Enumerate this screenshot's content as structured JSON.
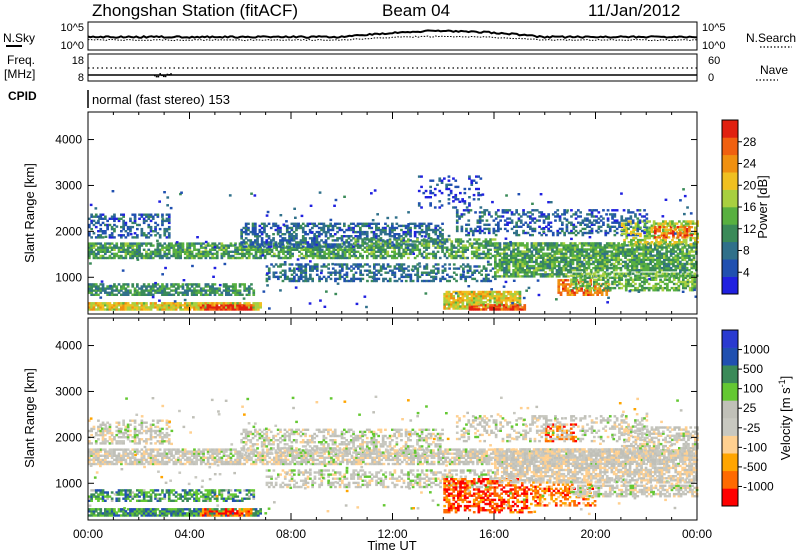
{
  "header": {
    "station": "Zhongshan Station (fitACF)",
    "beam": "Beam 04",
    "date": "11/Jan/2012"
  },
  "top_panels": {
    "nsky_label": "N.Sky",
    "nsky_ticks": [
      "10^5",
      "10^0"
    ],
    "nsearch_label": "N.Search",
    "nsearch_ticks": [
      "10^5",
      "10^0"
    ],
    "freq_label": "Freq.",
    "freq_unit": "[MHz]",
    "freq_ticks": [
      "18",
      "8"
    ],
    "nave_label": "Nave",
    "nave_ticks": [
      "60",
      "0"
    ],
    "cpid_label": "CPID",
    "cpid_text": "normal (fast stereo) 153"
  },
  "colors": {
    "power_scale": [
      "#2020e0",
      "#2050b0",
      "#30708a",
      "#3a8a58",
      "#58b040",
      "#a8d040",
      "#f0c020",
      "#f09010",
      "#f06010",
      "#e02010"
    ],
    "velocity_scale": [
      "#ff0000",
      "#ff6a00",
      "#ffa500",
      "#ffd090",
      "#c8c8c0",
      "#c0c0b8",
      "#64c832",
      "#3a8a58",
      "#2050b0",
      "#2a3ad0"
    ]
  },
  "chart_data": [
    {
      "type": "heatmap",
      "name": "power",
      "ylabel": "Slant Range [km]",
      "yticks": [
        "4000",
        "3000",
        "2000",
        "1000"
      ],
      "ylim": [
        200,
        4600
      ],
      "colorbar_label": "Power [dB]",
      "colorbar_ticks": [
        "28",
        "24",
        "20",
        "16",
        "12",
        "8",
        "4"
      ],
      "colorbar_range": [
        0,
        32
      ],
      "xlim_hours": [
        0,
        24
      ],
      "bands": [
        {
          "t": [
            0.0,
            6.8
          ],
          "r": [
            280,
            420
          ],
          "level": 0.62,
          "density": 0.9
        },
        {
          "t": [
            4.4,
            6.4
          ],
          "r": [
            280,
            400
          ],
          "level": 0.92,
          "density": 0.85
        },
        {
          "t": [
            0.0,
            6.5
          ],
          "r": [
            600,
            850
          ],
          "level": 0.35,
          "density": 0.7
        },
        {
          "t": [
            0.0,
            10.5
          ],
          "r": [
            1400,
            1750
          ],
          "level": 0.38,
          "density": 0.75
        },
        {
          "t": [
            0.0,
            3.2
          ],
          "r": [
            1850,
            2350
          ],
          "level": 0.2,
          "density": 0.45
        },
        {
          "t": [
            6.0,
            14.0
          ],
          "r": [
            1650,
            2150
          ],
          "level": 0.22,
          "density": 0.55
        },
        {
          "t": [
            10.5,
            16.0
          ],
          "r": [
            1400,
            1850
          ],
          "level": 0.4,
          "density": 0.6
        },
        {
          "t": [
            7.0,
            16.0
          ],
          "r": [
            900,
            1300
          ],
          "level": 0.25,
          "density": 0.45
        },
        {
          "t": [
            16.0,
            24.0
          ],
          "r": [
            1000,
            1750
          ],
          "level": 0.4,
          "density": 0.8
        },
        {
          "t": [
            14.0,
            17.0
          ],
          "r": [
            300,
            700
          ],
          "level": 0.62,
          "density": 0.85
        },
        {
          "t": [
            15.0,
            17.2
          ],
          "r": [
            280,
            400
          ],
          "level": 0.9,
          "density": 0.85
        },
        {
          "t": [
            18.5,
            20.5
          ],
          "r": [
            600,
            950
          ],
          "level": 0.82,
          "density": 0.7
        },
        {
          "t": [
            19.0,
            24.0
          ],
          "r": [
            700,
            1100
          ],
          "level": 0.45,
          "density": 0.6
        },
        {
          "t": [
            21.0,
            24.0
          ],
          "r": [
            1700,
            2200
          ],
          "level": 0.55,
          "density": 0.65
        },
        {
          "t": [
            22.3,
            23.8
          ],
          "r": [
            1850,
            2100
          ],
          "level": 0.82,
          "density": 0.6
        },
        {
          "t": [
            14.5,
            22.0
          ],
          "r": [
            1900,
            2450
          ],
          "level": 0.2,
          "density": 0.35
        },
        {
          "t": [
            13.0,
            15.5
          ],
          "r": [
            2500,
            3200
          ],
          "level": 0.12,
          "density": 0.2
        }
      ]
    },
    {
      "type": "heatmap",
      "name": "velocity",
      "ylabel": "Slant Range [km]",
      "yticks": [
        "4000",
        "3000",
        "2000",
        "1000"
      ],
      "ylim": [
        200,
        4600
      ],
      "colorbar_label": "Velocity [m s^-1]",
      "colorbar_ticks": [
        "1000",
        "500",
        "100",
        "25",
        "-25",
        "-100",
        "-500",
        "-1000"
      ],
      "xlim_hours": [
        0,
        24
      ],
      "xticks": [
        "00:00",
        "04:00",
        "08:00",
        "12:00",
        "16:00",
        "20:00",
        "00:00"
      ],
      "xlabel": "Time UT",
      "bands": [
        {
          "t": [
            0.0,
            6.8
          ],
          "r": [
            280,
            420
          ],
          "level": 0.75,
          "density": 0.9
        },
        {
          "t": [
            4.4,
            6.4
          ],
          "r": [
            280,
            420
          ],
          "level": 0.15,
          "density": 0.75
        },
        {
          "t": [
            0.0,
            6.5
          ],
          "r": [
            600,
            850
          ],
          "level": 0.72,
          "density": 0.6
        },
        {
          "t": [
            0.0,
            24.0
          ],
          "r": [
            1400,
            1750
          ],
          "level": 0.48,
          "density": 0.75
        },
        {
          "t": [
            0.0,
            3.2
          ],
          "r": [
            1850,
            2350
          ],
          "level": 0.48,
          "density": 0.45
        },
        {
          "t": [
            6.0,
            14.0
          ],
          "r": [
            1650,
            2150
          ],
          "level": 0.5,
          "density": 0.5
        },
        {
          "t": [
            7.0,
            16.0
          ],
          "r": [
            900,
            1300
          ],
          "level": 0.5,
          "density": 0.45
        },
        {
          "t": [
            14.0,
            17.5
          ],
          "r": [
            350,
            1100
          ],
          "level": 0.12,
          "density": 0.55
        },
        {
          "t": [
            17.5,
            20.0
          ],
          "r": [
            500,
            1000
          ],
          "level": 0.2,
          "density": 0.45
        },
        {
          "t": [
            19.0,
            24.0
          ],
          "r": [
            700,
            1100
          ],
          "level": 0.48,
          "density": 0.65
        },
        {
          "t": [
            16.0,
            24.0
          ],
          "r": [
            1000,
            1750
          ],
          "level": 0.46,
          "density": 0.7
        },
        {
          "t": [
            21.0,
            24.0
          ],
          "r": [
            1700,
            2200
          ],
          "level": 0.48,
          "density": 0.6
        },
        {
          "t": [
            18.0,
            19.2
          ],
          "r": [
            1900,
            2300
          ],
          "level": 0.15,
          "density": 0.55
        },
        {
          "t": [
            14.5,
            22.0
          ],
          "r": [
            1900,
            2450
          ],
          "level": 0.48,
          "density": 0.3
        }
      ]
    }
  ]
}
